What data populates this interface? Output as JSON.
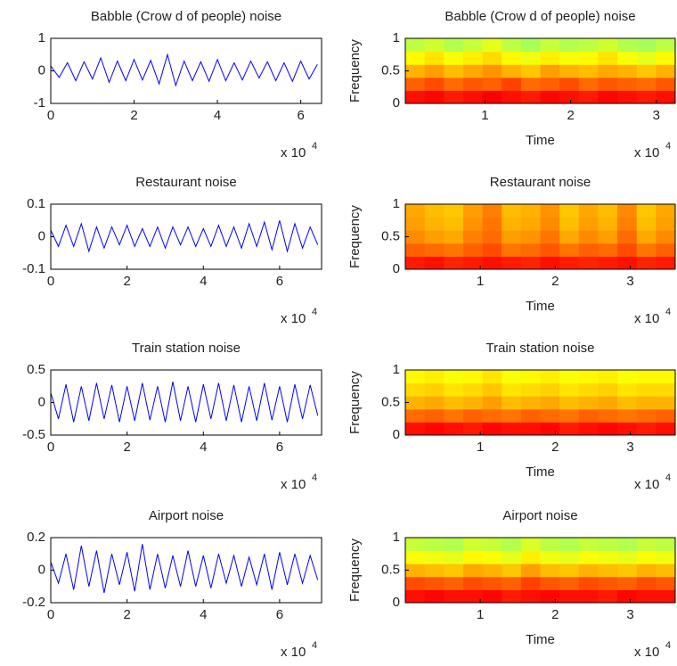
{
  "chart_data": [
    {
      "type": "line",
      "title": "Babble (Crow d of people) noise",
      "color": "#0000ff",
      "x": [
        0,
        0.2,
        0.4,
        0.6,
        0.8,
        1,
        1.2,
        1.4,
        1.6,
        1.8,
        2,
        2.2,
        2.4,
        2.6,
        2.8,
        3,
        3.2,
        3.4,
        3.6,
        3.8,
        4,
        4.2,
        4.4,
        4.6,
        4.8,
        5,
        5.2,
        5.4,
        5.6,
        5.8,
        6,
        6.2,
        6.4
      ],
      "values": [
        0.15,
        -0.2,
        0.25,
        -0.3,
        0.28,
        -0.25,
        0.4,
        -0.35,
        0.3,
        -0.3,
        0.35,
        -0.28,
        0.32,
        -0.4,
        0.5,
        -0.45,
        0.3,
        -0.3,
        0.28,
        -0.32,
        0.35,
        -0.3,
        0.25,
        -0.28,
        0.3,
        -0.22,
        0.28,
        -0.3,
        0.25,
        -0.32,
        0.3,
        -0.25,
        0.2
      ],
      "xlim": [
        0,
        6.5
      ],
      "ylim": [
        -1,
        1
      ],
      "xticks": [
        0,
        2,
        4,
        6
      ],
      "yticks": [
        -1,
        0,
        1
      ],
      "x_multiplier": {
        "base": "x 10",
        "exponent": "4"
      }
    },
    {
      "type": "heatmap",
      "title": "Babble (Crow d of people) noise",
      "xlabel": "Time",
      "ylabel": "Frequency",
      "colormap": "jet",
      "values": [
        [
          0.86,
          0.87,
          0.85,
          0.86,
          0.88,
          0.86,
          0.85,
          0.87,
          0.86,
          0.85,
          0.87,
          0.86,
          0.85,
          0.86
        ],
        [
          0.78,
          0.8,
          0.77,
          0.79,
          0.78,
          0.81,
          0.77,
          0.78,
          0.8,
          0.77,
          0.79,
          0.78,
          0.77,
          0.79
        ],
        [
          0.7,
          0.72,
          0.69,
          0.71,
          0.73,
          0.7,
          0.68,
          0.72,
          0.7,
          0.69,
          0.71,
          0.7,
          0.68,
          0.7
        ],
        [
          0.63,
          0.65,
          0.62,
          0.64,
          0.66,
          0.63,
          0.61,
          0.64,
          0.62,
          0.63,
          0.65,
          0.62,
          0.6,
          0.63
        ],
        [
          0.56,
          0.58,
          0.55,
          0.57,
          0.6,
          0.56,
          0.54,
          0.57,
          0.55,
          0.56,
          0.58,
          0.55,
          0.54,
          0.56
        ]
      ],
      "xlim": [
        0.07,
        3.22
      ],
      "ylim": [
        0,
        1
      ],
      "xticks": [
        1,
        2,
        3
      ],
      "yticks": [
        0,
        0.5,
        1
      ],
      "x_multiplier": {
        "base": "x 10",
        "exponent": "4"
      }
    },
    {
      "type": "line",
      "title": "Restaurant noise",
      "color": "#0000ff",
      "x": [
        0,
        0.2,
        0.4,
        0.6,
        0.8,
        1,
        1.2,
        1.4,
        1.6,
        1.8,
        2,
        2.2,
        2.4,
        2.6,
        2.8,
        3,
        3.2,
        3.4,
        3.6,
        3.8,
        4,
        4.2,
        4.4,
        4.6,
        4.8,
        5,
        5.2,
        5.4,
        5.6,
        5.8,
        6,
        6.2,
        6.4,
        6.6,
        6.8,
        7
      ],
      "values": [
        0.02,
        -0.03,
        0.035,
        -0.03,
        0.04,
        -0.045,
        0.03,
        -0.035,
        0.03,
        -0.025,
        0.035,
        -0.03,
        0.025,
        -0.03,
        0.03,
        -0.035,
        0.03,
        -0.025,
        0.03,
        -0.03,
        0.025,
        -0.03,
        0.035,
        -0.03,
        0.03,
        -0.035,
        0.04,
        -0.03,
        0.045,
        -0.04,
        0.05,
        -0.045,
        0.04,
        -0.035,
        0.03,
        -0.025
      ],
      "xlim": [
        0,
        7.1
      ],
      "ylim": [
        -0.1,
        0.1
      ],
      "xticks": [
        0,
        2,
        4,
        6
      ],
      "yticks": [
        -0.1,
        0,
        0.1
      ],
      "x_multiplier": {
        "base": "x 10",
        "exponent": "4"
      }
    },
    {
      "type": "heatmap",
      "title": "Restaurant noise",
      "xlabel": "Time",
      "ylabel": "Frequency",
      "colormap": "jet",
      "values": [
        [
          0.85,
          0.86,
          0.84,
          0.85,
          0.86,
          0.85,
          0.84,
          0.86,
          0.85,
          0.84,
          0.85,
          0.86,
          0.84,
          0.85
        ],
        [
          0.78,
          0.77,
          0.76,
          0.78,
          0.8,
          0.76,
          0.77,
          0.79,
          0.76,
          0.78,
          0.77,
          0.8,
          0.76,
          0.78
        ],
        [
          0.74,
          0.72,
          0.71,
          0.75,
          0.77,
          0.72,
          0.73,
          0.76,
          0.71,
          0.74,
          0.72,
          0.77,
          0.71,
          0.74
        ],
        [
          0.72,
          0.7,
          0.69,
          0.73,
          0.76,
          0.7,
          0.71,
          0.74,
          0.69,
          0.72,
          0.7,
          0.75,
          0.69,
          0.72
        ],
        [
          0.71,
          0.69,
          0.68,
          0.72,
          0.75,
          0.69,
          0.7,
          0.73,
          0.68,
          0.71,
          0.69,
          0.74,
          0.68,
          0.71
        ]
      ],
      "xlim": [
        0,
        3.6
      ],
      "ylim": [
        0,
        1
      ],
      "xticks": [
        1,
        2,
        3
      ],
      "yticks": [
        0,
        0.5,
        1
      ],
      "x_multiplier": {
        "base": "x 10",
        "exponent": "4"
      }
    },
    {
      "type": "line",
      "title": "Train station noise",
      "color": "#0000ff",
      "x": [
        0,
        0.2,
        0.4,
        0.6,
        0.8,
        1,
        1.2,
        1.4,
        1.6,
        1.8,
        2,
        2.2,
        2.4,
        2.6,
        2.8,
        3,
        3.2,
        3.4,
        3.6,
        3.8,
        4,
        4.2,
        4.4,
        4.6,
        4.8,
        5,
        5.2,
        5.4,
        5.6,
        5.8,
        6,
        6.2,
        6.4,
        6.6,
        6.8,
        7
      ],
      "values": [
        0.15,
        -0.25,
        0.28,
        -0.3,
        0.25,
        -0.28,
        0.3,
        -0.25,
        0.27,
        -0.3,
        0.25,
        -0.28,
        0.3,
        -0.27,
        0.25,
        -0.3,
        0.32,
        -0.28,
        0.25,
        -0.3,
        0.28,
        -0.25,
        0.3,
        -0.28,
        0.27,
        -0.3,
        0.25,
        -0.28,
        0.3,
        -0.27,
        0.25,
        -0.3,
        0.28,
        -0.25,
        0.27,
        -0.2
      ],
      "xlim": [
        0,
        7.1
      ],
      "ylim": [
        -0.5,
        0.5
      ],
      "xticks": [
        0,
        2,
        4,
        6
      ],
      "yticks": [
        -0.5,
        0,
        0.5
      ],
      "x_multiplier": {
        "base": "x 10",
        "exponent": "4"
      }
    },
    {
      "type": "heatmap",
      "title": "Train station noise",
      "xlabel": "Time",
      "ylabel": "Frequency",
      "colormap": "jet",
      "values": [
        [
          0.86,
          0.87,
          0.86,
          0.85,
          0.87,
          0.86,
          0.86,
          0.87,
          0.85,
          0.86,
          0.87,
          0.86,
          0.85,
          0.86
        ],
        [
          0.77,
          0.78,
          0.76,
          0.78,
          0.77,
          0.76,
          0.78,
          0.77,
          0.76,
          0.78,
          0.77,
          0.76,
          0.77,
          0.78
        ],
        [
          0.7,
          0.71,
          0.69,
          0.7,
          0.72,
          0.69,
          0.7,
          0.71,
          0.69,
          0.7,
          0.71,
          0.69,
          0.7,
          0.7
        ],
        [
          0.66,
          0.67,
          0.65,
          0.66,
          0.68,
          0.65,
          0.66,
          0.67,
          0.65,
          0.66,
          0.67,
          0.65,
          0.66,
          0.66
        ],
        [
          0.63,
          0.64,
          0.62,
          0.63,
          0.65,
          0.62,
          0.63,
          0.64,
          0.62,
          0.63,
          0.64,
          0.62,
          0.63,
          0.63
        ]
      ],
      "xlim": [
        0,
        3.6
      ],
      "ylim": [
        0,
        1
      ],
      "xticks": [
        1,
        2,
        3
      ],
      "yticks": [
        0,
        0.5,
        1
      ],
      "x_multiplier": {
        "base": "x 10",
        "exponent": "4"
      }
    },
    {
      "type": "line",
      "title": "Airport noise",
      "color": "#0000ff",
      "x": [
        0,
        0.2,
        0.4,
        0.6,
        0.8,
        1,
        1.2,
        1.4,
        1.6,
        1.8,
        2,
        2.2,
        2.4,
        2.6,
        2.8,
        3,
        3.2,
        3.4,
        3.6,
        3.8,
        4,
        4.2,
        4.4,
        4.6,
        4.8,
        5,
        5.2,
        5.4,
        5.6,
        5.8,
        6,
        6.2,
        6.4,
        6.6,
        6.8,
        7
      ],
      "values": [
        0.05,
        -0.08,
        0.1,
        -0.12,
        0.15,
        -0.1,
        0.12,
        -0.14,
        0.1,
        -0.09,
        0.11,
        -0.13,
        0.16,
        -0.12,
        0.1,
        -0.11,
        0.09,
        -0.1,
        0.12,
        -0.1,
        0.09,
        -0.11,
        0.1,
        -0.08,
        0.09,
        -0.1,
        0.08,
        -0.09,
        0.1,
        -0.12,
        0.11,
        -0.09,
        0.1,
        -0.08,
        0.09,
        -0.06
      ],
      "xlim": [
        0,
        7.1
      ],
      "ylim": [
        -0.2,
        0.2
      ],
      "xticks": [
        0,
        2,
        4,
        6
      ],
      "yticks": [
        -0.2,
        0,
        0.2
      ],
      "x_multiplier": {
        "base": "x 10",
        "exponent": "4"
      }
    },
    {
      "type": "heatmap",
      "title": "Airport noise",
      "xlabel": "Time",
      "ylabel": "Frequency",
      "colormap": "jet",
      "values": [
        [
          0.86,
          0.87,
          0.86,
          0.86,
          0.87,
          0.85,
          0.86,
          0.87,
          0.86,
          0.86,
          0.85,
          0.87,
          0.86,
          0.86
        ],
        [
          0.8,
          0.79,
          0.78,
          0.8,
          0.79,
          0.78,
          0.81,
          0.79,
          0.78,
          0.8,
          0.79,
          0.78,
          0.8,
          0.79
        ],
        [
          0.7,
          0.69,
          0.68,
          0.71,
          0.7,
          0.68,
          0.72,
          0.69,
          0.68,
          0.7,
          0.69,
          0.68,
          0.7,
          0.69
        ],
        [
          0.62,
          0.61,
          0.6,
          0.63,
          0.62,
          0.6,
          0.64,
          0.61,
          0.6,
          0.62,
          0.61,
          0.6,
          0.62,
          0.61
        ],
        [
          0.57,
          0.56,
          0.55,
          0.58,
          0.57,
          0.55,
          0.59,
          0.56,
          0.55,
          0.57,
          0.56,
          0.55,
          0.57,
          0.56
        ]
      ],
      "xlim": [
        0,
        3.6
      ],
      "ylim": [
        0,
        1
      ],
      "xticks": [
        1,
        2,
        3
      ],
      "yticks": [
        0,
        0.5,
        1
      ],
      "x_multiplier": {
        "base": "x 10",
        "exponent": "4"
      }
    }
  ]
}
